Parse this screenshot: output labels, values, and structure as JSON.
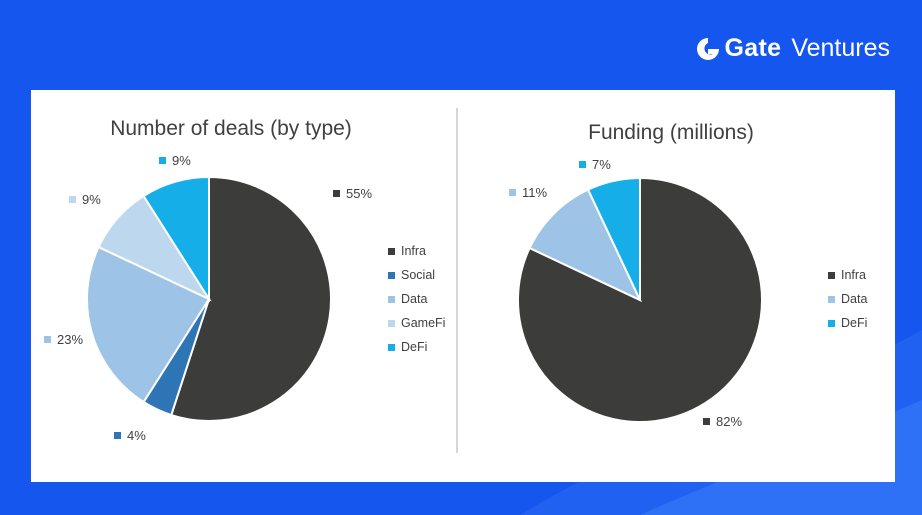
{
  "brand": {
    "name": "Gate",
    "suffix": "Ventures",
    "logo_icon": "gate-logo-icon"
  },
  "colors": {
    "background": "#1456ee",
    "Infra": "#3c3c3a",
    "Social": "#2e75b6",
    "Data": "#9dc3e6",
    "GameFi": "#bdd7ee",
    "DeFi": "#15aee8"
  },
  "chart_data": [
    {
      "type": "pie",
      "title": "Number of deals (by type)",
      "categories": [
        "Infra",
        "Social",
        "Data",
        "GameFi",
        "DeFi"
      ],
      "values": [
        55,
        4,
        23,
        9,
        9
      ],
      "data_labels": [
        "55%",
        "4%",
        "23%",
        "9%",
        "9%"
      ],
      "legend": "right"
    },
    {
      "type": "pie",
      "title": "Funding (millions)",
      "categories": [
        "Infra",
        "Data",
        "DeFi"
      ],
      "values": [
        82,
        11,
        7
      ],
      "data_labels": [
        "82%",
        "11%",
        "7%"
      ],
      "legend": "right"
    }
  ]
}
